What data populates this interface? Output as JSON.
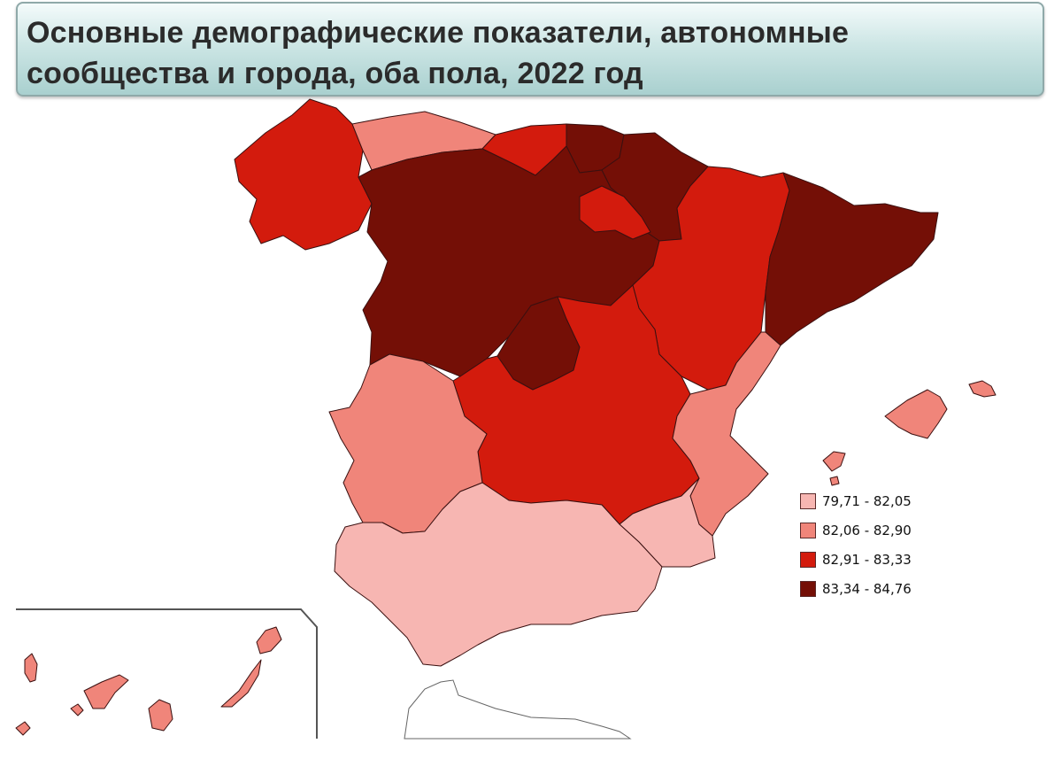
{
  "title": "Основные демографические показатели, автономные сообщества и города, оба пола, 2022 год",
  "colors": {
    "class1": "#f7b6b2",
    "class2": "#f0857a",
    "class3": "#d31b0d",
    "class4": "#740f06"
  },
  "legend": {
    "items": [
      {
        "label": "79,71 - 82,05",
        "class": 1,
        "color": "#f7b6b2"
      },
      {
        "label": "82,06 - 82,90",
        "class": 2,
        "color": "#f0857a"
      },
      {
        "label": "82,91 - 83,33",
        "class": 3,
        "color": "#d31b0d"
      },
      {
        "label": "83,34 - 84,76",
        "class": 4,
        "color": "#740f06"
      }
    ]
  },
  "regions": [
    {
      "name": "Galicia",
      "class": 3
    },
    {
      "name": "Asturias",
      "class": 2
    },
    {
      "name": "Cantabria",
      "class": 3
    },
    {
      "name": "País Vasco",
      "class": 4
    },
    {
      "name": "Navarra",
      "class": 4
    },
    {
      "name": "La Rioja",
      "class": 3
    },
    {
      "name": "Aragón",
      "class": 3
    },
    {
      "name": "Cataluña",
      "class": 4
    },
    {
      "name": "Castilla y León",
      "class": 4
    },
    {
      "name": "Madrid",
      "class": 4
    },
    {
      "name": "Castilla-La Mancha",
      "class": 3
    },
    {
      "name": "Extremadura",
      "class": 2
    },
    {
      "name": "Comunitat Valenciana",
      "class": 2
    },
    {
      "name": "Murcia",
      "class": 1
    },
    {
      "name": "Andalucía",
      "class": 1
    },
    {
      "name": "Illes Balears",
      "class": 2
    },
    {
      "name": "Canarias",
      "class": 2
    }
  ]
}
